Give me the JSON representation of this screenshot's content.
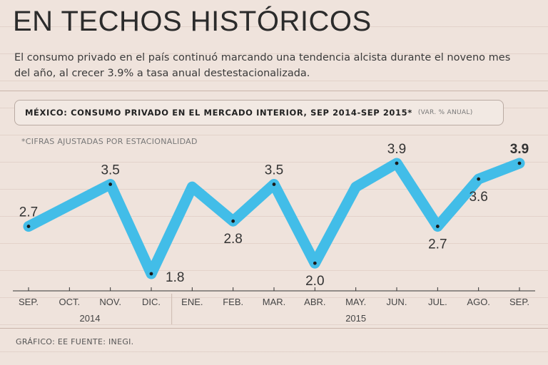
{
  "header": {
    "title": "EN TECHOS HISTÓRICOS",
    "subtitle": "El consumo privado en el país continuó marcando una tendencia alcista durante el noveno mes del año, al crecer 3.9% a tasa anual destestacionalizada."
  },
  "chart_header": {
    "title": "MÉXICO: CONSUMO PRIVADO EN EL MERCADO INTERIOR, SEP 2014-SEP 2015*",
    "unit": "(VAR. % ANUAL)"
  },
  "note": "*CIFRAS AJUSTADAS POR ESTACIONALIDAD",
  "footer": "GRÁFICO: EE  FUENTE: INEGI.",
  "colors": {
    "line": "#42bde8",
    "background": "#efe3dc",
    "dot": "#1a1a1a"
  },
  "chart_data": {
    "type": "line",
    "title": "MÉXICO: CONSUMO PRIVADO EN EL MERCADO INTERIOR, SEP 2014-SEP 2015*",
    "xlabel": "",
    "ylabel": "VAR. % ANUAL",
    "categories": [
      "SEP.",
      "OCT.",
      "NOV.",
      "DIC.",
      "ENE.",
      "FEB.",
      "MAR.",
      "ABR.",
      "MAY.",
      "JUN.",
      "JUL.",
      "AGO.",
      "SEP."
    ],
    "year_groups": [
      {
        "label": "2014",
        "start": 0,
        "end": 3
      },
      {
        "label": "2015",
        "start": 4,
        "end": 12
      }
    ],
    "series": [
      {
        "name": "Consumo privado",
        "values": [
          2.7,
          3.1,
          3.5,
          1.8,
          3.45,
          2.8,
          3.5,
          2.0,
          3.45,
          3.9,
          2.7,
          3.6,
          3.9
        ]
      }
    ],
    "data_labels": [
      {
        "index": 0,
        "text": "2.7",
        "pos": "above",
        "bold": false
      },
      {
        "index": 2,
        "text": "3.5",
        "pos": "above",
        "bold": false
      },
      {
        "index": 3,
        "text": "1.8",
        "pos": "right",
        "bold": false
      },
      {
        "index": 5,
        "text": "2.8",
        "pos": "below",
        "bold": false
      },
      {
        "index": 6,
        "text": "3.5",
        "pos": "above",
        "bold": false
      },
      {
        "index": 7,
        "text": "2.0",
        "pos": "below",
        "bold": false
      },
      {
        "index": 9,
        "text": "3.9",
        "pos": "above",
        "bold": false
      },
      {
        "index": 10,
        "text": "2.7",
        "pos": "below",
        "bold": false
      },
      {
        "index": 11,
        "text": "3.6",
        "pos": "below",
        "bold": false
      },
      {
        "index": 12,
        "text": "3.9",
        "pos": "above",
        "bold": true
      }
    ],
    "marked_points": [
      0,
      2,
      3,
      5,
      6,
      7,
      9,
      10,
      11,
      12
    ],
    "ylim": [
      1.5,
      4.2
    ],
    "grid": true
  }
}
